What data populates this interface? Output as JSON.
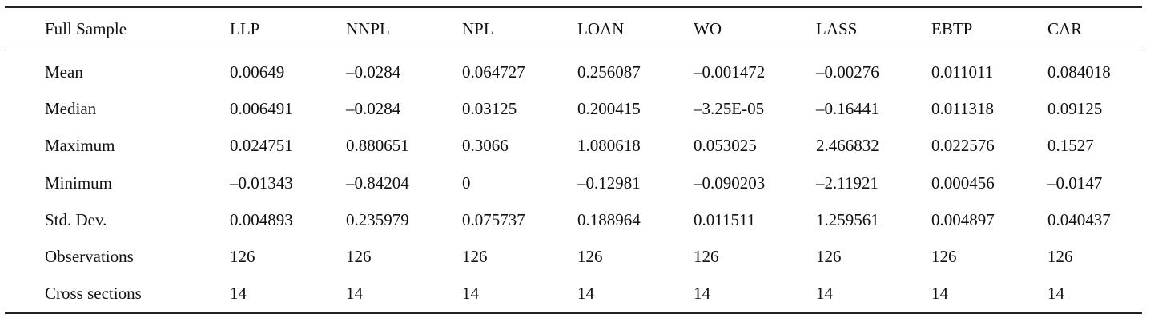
{
  "table": {
    "headers": [
      "Full Sample",
      "LLP",
      "NNPL",
      "NPL",
      "LOAN",
      "WO",
      "LASS",
      "EBTP",
      "CAR"
    ],
    "rows": [
      [
        "Mean",
        "0.00649",
        "–0.0284",
        "0.064727",
        "0.256087",
        "–0.001472",
        "–0.00276",
        "0.011011",
        "0.084018"
      ],
      [
        "Median",
        "0.006491",
        "–0.0284",
        "0.03125",
        "0.200415",
        "–3.25E-05",
        "–0.16441",
        "0.011318",
        "0.09125"
      ],
      [
        "Maximum",
        "0.024751",
        "0.880651",
        "0.3066",
        "1.080618",
        "0.053025",
        "2.466832",
        "0.022576",
        "0.1527"
      ],
      [
        "Minimum",
        "–0.01343",
        "–0.84204",
        "0",
        "–0.12981",
        "–0.090203",
        "–2.11921",
        "0.000456",
        "–0.0147"
      ],
      [
        "Std. Dev.",
        "0.004893",
        "0.235979",
        "0.075737",
        "0.188964",
        "0.011511",
        "1.259561",
        "0.004897",
        "0.040437"
      ],
      [
        "Observations",
        "126",
        "126",
        "126",
        "126",
        "126",
        "126",
        "126",
        "126"
      ],
      [
        "Cross sections",
        "14",
        "14",
        "14",
        "14",
        "14",
        "14",
        "14",
        "14"
      ]
    ]
  }
}
